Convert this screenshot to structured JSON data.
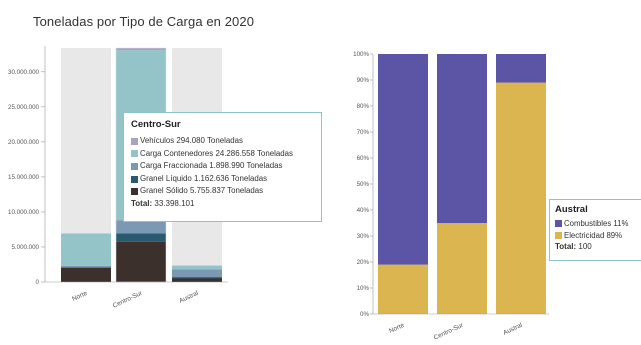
{
  "title": "Toneladas por Tipo de Carga en 2020",
  "chart_data": [
    {
      "type": "bar",
      "stacked": true,
      "categories": [
        "Norte",
        "Centro-Sur",
        "Austral"
      ],
      "series": [
        {
          "name": "Granel Sólido",
          "color": "#3b302b",
          "values": [
            2000000,
            5755837,
            500000
          ]
        },
        {
          "name": "Granel Líquido",
          "color": "#2a5a6f",
          "values": [
            100000,
            1162636,
            200000
          ]
        },
        {
          "name": "Carga Fraccionada",
          "color": "#7c99b3",
          "values": [
            200000,
            1898990,
            1100000
          ]
        },
        {
          "name": "Carga Contenedores",
          "color": "#94c3c8",
          "values": [
            4600000,
            24286558,
            500000
          ]
        },
        {
          "name": "Vehículos",
          "color": "#a8a3c4",
          "values": [
            20000,
            294080,
            20000
          ]
        }
      ],
      "totals": [
        6920000,
        33398101,
        2320000
      ],
      "ylim": [
        0,
        33398101
      ],
      "yticks": [
        "0",
        "5.000.000",
        "10.000.000",
        "15.000.000",
        "20.000.000",
        "25.000.000",
        "30.000.000"
      ],
      "ytick_values": [
        0,
        5000000,
        10000000,
        15000000,
        20000000,
        25000000,
        30000000
      ],
      "track_color": "#e8e8e8",
      "highlight_category": "Centro-Sur",
      "xlabel": "",
      "ylabel": ""
    },
    {
      "type": "bar",
      "stacked": true,
      "percent": true,
      "categories": [
        "Norte",
        "Centro-Sur",
        "Austral"
      ],
      "series": [
        {
          "name": "Electricidad",
          "color": "#dbb54f",
          "values": [
            19,
            35,
            89
          ]
        },
        {
          "name": "Combustibles",
          "color": "#5c55a6",
          "values": [
            81,
            65,
            11
          ]
        }
      ],
      "ylim": [
        0,
        100
      ],
      "yticks": [
        "0%",
        "10%",
        "20%",
        "30%",
        "40%",
        "50%",
        "60%",
        "70%",
        "80%",
        "90%",
        "100%"
      ],
      "ytick_values": [
        0,
        10,
        20,
        30,
        40,
        50,
        60,
        70,
        80,
        90,
        100
      ],
      "highlight_category": "Austral",
      "xlabel": "",
      "ylabel": ""
    }
  ],
  "tooltip1": {
    "title": "Centro-Sur",
    "rows": [
      {
        "color": "#a8a3c4",
        "text": "Vehículos 294.080 Toneladas"
      },
      {
        "color": "#94c3c8",
        "text": "Carga Contenedores 24.286.558 Toneladas"
      },
      {
        "color": "#7c99b3",
        "text": "Carga Fraccionada 1.898.990 Toneladas"
      },
      {
        "color": "#2a5a6f",
        "text": "Granel Líquido 1.162.636 Toneladas"
      },
      {
        "color": "#3b302b",
        "text": "Granel Sólido 5.755.837 Toneladas"
      }
    ],
    "total_label": "Total:",
    "total_value": " 33.398.101"
  },
  "tooltip2": {
    "title": "Austral",
    "rows": [
      {
        "color": "#5c55a6",
        "text": "Combustibles 11%"
      },
      {
        "color": "#dbb54f",
        "text": "Electricidad 89%"
      }
    ],
    "total_label": "Total:",
    "total_value": " 100"
  }
}
